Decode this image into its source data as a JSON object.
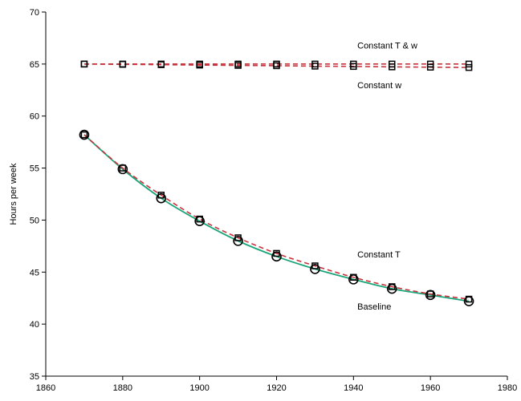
{
  "chart_data": {
    "type": "line",
    "title": "",
    "xlabel": "",
    "ylabel": "Hours per week",
    "xlim": [
      1860,
      1980
    ],
    "ylim": [
      35,
      70
    ],
    "xticks": [
      1860,
      1880,
      1900,
      1920,
      1940,
      1960,
      1980
    ],
    "yticks": [
      35,
      40,
      45,
      50,
      55,
      60,
      65,
      70
    ],
    "grid": false,
    "x": [
      1870,
      1880,
      1890,
      1900,
      1910,
      1920,
      1930,
      1940,
      1950,
      1960,
      1970
    ],
    "series": [
      {
        "key": "baseline",
        "values": [
          58.2,
          54.9,
          52.1,
          49.9,
          48.0,
          46.5,
          45.3,
          44.3,
          43.4,
          42.8,
          42.2
        ],
        "color": "#1aa67a",
        "dash": "solid",
        "marker": "circle"
      },
      {
        "key": "constant_t",
        "values": [
          58.2,
          55.0,
          52.4,
          50.1,
          48.3,
          46.8,
          45.6,
          44.5,
          43.6,
          42.9,
          42.4
        ],
        "color": "#c8323c",
        "dash": "dashed",
        "marker": "square"
      },
      {
        "key": "constant_tw",
        "values": [
          65.0,
          65.0,
          65.0,
          65.0,
          65.0,
          65.0,
          65.0,
          65.0,
          65.0,
          65.0,
          65.0
        ],
        "color": "#c8323c",
        "dash": "dashed",
        "marker": "square"
      },
      {
        "key": "constant_w",
        "values": [
          65.0,
          64.97,
          64.94,
          64.9,
          64.87,
          64.84,
          64.8,
          64.77,
          64.73,
          64.7,
          64.67
        ],
        "color": "#c8323c",
        "dash": "dashed",
        "marker": "square"
      }
    ],
    "annotations": [
      {
        "text": "Constant T & w",
        "x": 1941,
        "y": 66.8
      },
      {
        "text": "Constant w",
        "x": 1941,
        "y": 63.0
      },
      {
        "text": "Constant T",
        "x": 1941,
        "y": 46.7
      },
      {
        "text": "Baseline",
        "x": 1941,
        "y": 41.7
      }
    ]
  }
}
